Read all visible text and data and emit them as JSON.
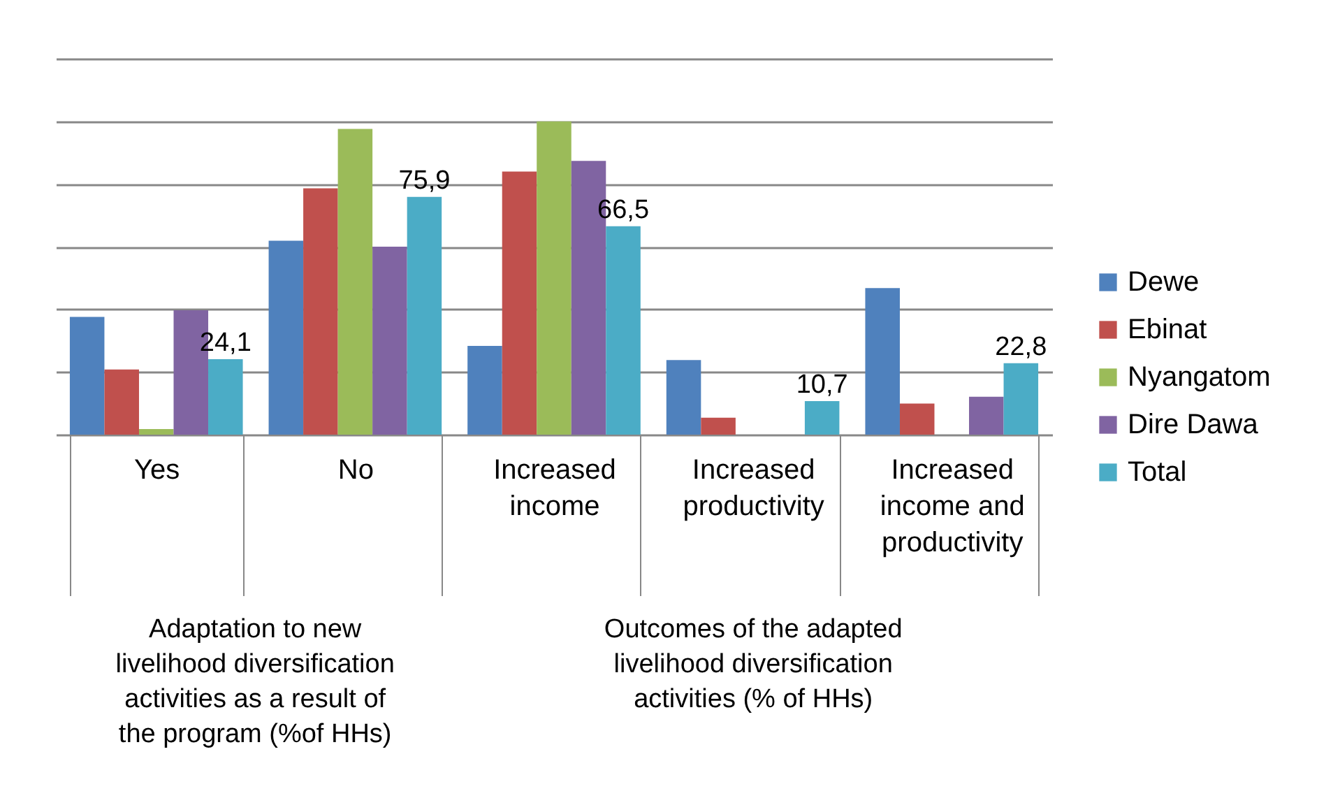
{
  "chart_data": {
    "type": "bar",
    "categories": [
      "Yes",
      "No",
      "Increased income",
      "Increased productivity",
      "Increased income and productivity"
    ],
    "series": [
      {
        "name": "Dewe",
        "color": "#4f81bd",
        "values": [
          37.6,
          61.9,
          28.3,
          23.8,
          46.8
        ]
      },
      {
        "name": "Ebinat",
        "color": "#c0504d",
        "values": [
          20.8,
          78.6,
          84,
          5.4,
          9.9
        ]
      },
      {
        "name": "Nyangatom",
        "color": "#9bbb59",
        "values": [
          1.8,
          97.6,
          100,
          null,
          null
        ]
      },
      {
        "name": "Dire Dawa",
        "color": "#8064a2",
        "values": [
          39.7,
          60,
          87.4,
          null,
          12.1
        ]
      },
      {
        "name": "Total",
        "color": "#4bacc6",
        "values": [
          24.1,
          75.9,
          66.5,
          10.7,
          22.8
        ],
        "value_labels": [
          "24,1",
          "75,9",
          "66,5",
          "10,7",
          "22,8"
        ]
      }
    ],
    "ylim": [
      0,
      120
    ],
    "yticks": [
      {
        "value": 0,
        "label": null
      },
      {
        "value": 20,
        "label": null
      },
      {
        "value": 40,
        "label": null
      },
      {
        "value": 60,
        "label": null
      },
      {
        "value": 80,
        "label": null
      },
      {
        "value": 100,
        "label": null
      },
      {
        "value": 120,
        "label": null
      }
    ],
    "grid": true,
    "legend": "right",
    "annotations": [
      "Adaptation to new livelihood diversification activities as a result of the program (%of HHs)",
      "Outcomes of the adapted livelihood diversification activities (% of HHs)"
    ]
  }
}
